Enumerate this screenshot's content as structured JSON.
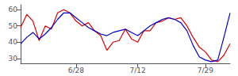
{
  "chart_data": {
    "type": "line",
    "categories": [
      null,
      null,
      null,
      null,
      null,
      null,
      null,
      null,
      null,
      "6/28",
      null,
      null,
      null,
      null,
      null,
      null,
      null,
      null,
      null,
      "7/12",
      null,
      null,
      null,
      null,
      null,
      null,
      null,
      null,
      null,
      null,
      "7/29",
      null,
      null,
      null,
      null
    ],
    "series": [
      {
        "color": "#dd0000",
        "values": [
          49,
          57,
          53,
          41,
          50,
          48,
          58,
          60,
          58,
          53,
          50,
          52,
          47,
          44,
          35,
          40,
          41,
          48,
          42,
          40,
          47,
          47,
          52,
          53,
          55,
          54,
          55,
          50,
          43,
          37,
          34,
          29,
          28,
          32,
          39
        ]
      },
      {
        "color": "#0000cc",
        "values": [
          39,
          43,
          46,
          42,
          45,
          49,
          54,
          58,
          58,
          55,
          52,
          49,
          47,
          45,
          44,
          46,
          47,
          48,
          46,
          44,
          47,
          50,
          52,
          54,
          55,
          54,
          52,
          47,
          38,
          31,
          29,
          28,
          29,
          43,
          58
        ]
      }
    ],
    "ylim": [
      27,
      63
    ],
    "yticks": [
      30,
      40,
      50,
      60
    ],
    "grid": false
  }
}
